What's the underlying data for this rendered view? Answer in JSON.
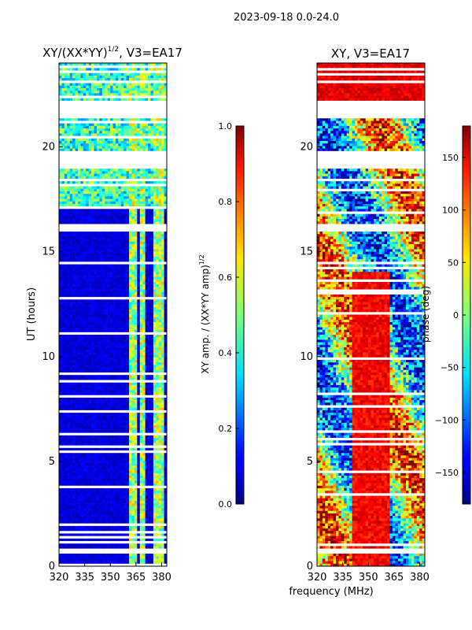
{
  "suptitle": "2023-09-18 0.0-24.0",
  "xlabel_shared": "frequency (MHz)",
  "chart_data": [
    {
      "type": "heatmap",
      "title_main": "XY/(XX*YY)",
      "title_sup": "1/2",
      "title_tail": ", V3=EA17",
      "ylabel": "UT (hours)",
      "xlim": [
        320,
        383
      ],
      "ylim": [
        0,
        24
      ],
      "xticks": [
        320,
        335,
        350,
        365,
        380
      ],
      "yticks": [
        0,
        5,
        10,
        15,
        20
      ],
      "colorbar": {
        "label_main": "XY amp. / (XX*YY amp)",
        "label_sup": "1/2",
        "range": [
          0.0,
          1.0
        ],
        "ticks": [
          "0.0",
          "0.2",
          "0.4",
          "0.6",
          "0.8",
          "1.0"
        ],
        "tick_values": [
          0.0,
          0.2,
          0.4,
          0.6,
          0.8,
          1.0
        ]
      },
      "gaps_hours": [
        [
          21.4,
          22.2
        ],
        [
          19.0,
          19.8
        ],
        [
          23.0,
          23.2
        ],
        [
          16.0,
          16.3
        ],
        [
          0.6,
          0.8
        ]
      ]
    },
    {
      "type": "heatmap",
      "title": "XY, V3=EA17",
      "ylabel": "",
      "xlim": [
        320,
        383
      ],
      "ylim": [
        0,
        24
      ],
      "xticks": [
        320,
        335,
        350,
        365,
        380
      ],
      "yticks": [
        0,
        5,
        10,
        15,
        20
      ],
      "colorbar": {
        "label": "phase (deg)",
        "range": [
          -180,
          180
        ],
        "ticks": [
          "150",
          "100",
          "50",
          "0",
          "−50",
          "−100",
          "−150"
        ],
        "tick_values": [
          150,
          100,
          50,
          0,
          -50,
          -100,
          -150
        ]
      },
      "gaps_hours": [
        [
          21.4,
          22.2
        ],
        [
          19.0,
          19.8
        ],
        [
          23.0,
          23.2
        ],
        [
          16.0,
          16.3
        ],
        [
          0.6,
          0.8
        ]
      ]
    }
  ]
}
